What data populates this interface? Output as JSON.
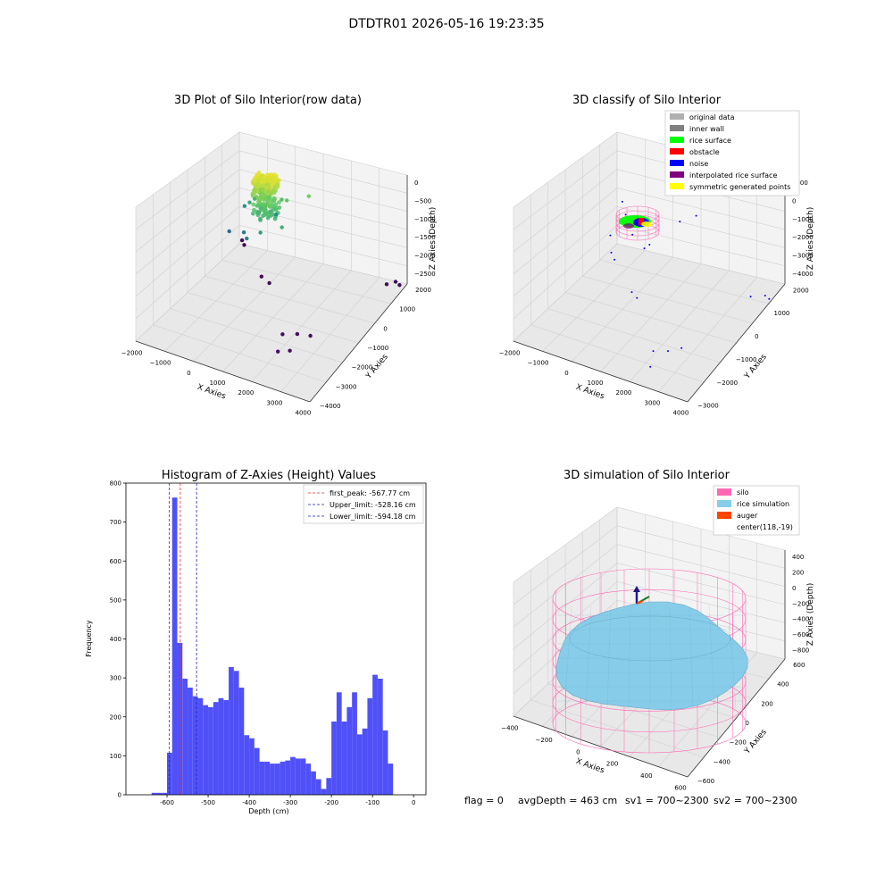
{
  "suptitle": "DTDTR01 2026-05-16 19:23:35",
  "status_line": {
    "flag": "flag = 0",
    "avg_depth": "avgDepth = 463 cm",
    "sv1": "sv1 = 700~2300",
    "sv2": "sv2 = 700~2300"
  },
  "colors": {
    "hist_bar": "#5050f8",
    "first_peak": "#e0302a",
    "limits": "#2020c0",
    "silo": "#ff69b4",
    "rice": "#87cdea",
    "auger": "#ff4500",
    "noise": "#0000ff",
    "rice_surface": "#00ff00",
    "obstacle": "#ff0000",
    "inner_wall": "#808080",
    "original": "#b0b0b0",
    "interpolated": "#800080",
    "symmetric": "#ffff00"
  },
  "chart_data": [
    {
      "type": "scatter",
      "projection": "3d",
      "title": "3D Plot of Silo Interior(row data)",
      "xlabel": "X Axies",
      "ylabel": "Y Axies",
      "zlabel": "Z Axies (Depth)",
      "xticks": [
        "−2000",
        "−1000",
        "0",
        "1000",
        "2000",
        "3000",
        "4000"
      ],
      "yticks": [
        "−4000",
        "−3000",
        "−2000",
        "−1000",
        "0",
        "1000",
        "2000"
      ],
      "zticks": [
        "0",
        "−500",
        "−1000",
        "−1500",
        "−2000",
        "−2500"
      ],
      "xlim": [
        -2000,
        4000
      ],
      "ylim": [
        -4000,
        2000
      ],
      "zlim": [
        -2700,
        0
      ],
      "colormap": "viridis",
      "cluster": {
        "x": [
          -200,
          500
        ],
        "y": [
          -300,
          300
        ],
        "z": [
          -1000,
          -100
        ]
      },
      "points": [
        [
          -1200,
          1000,
          -1300
        ],
        [
          -900,
          800,
          -1100
        ],
        [
          -600,
          600,
          -900
        ],
        [
          300,
          700,
          -800
        ],
        [
          600,
          500,
          -700
        ],
        [
          -400,
          -200,
          -1500
        ],
        [
          200,
          -400,
          -1200
        ],
        [
          -800,
          300,
          -1600
        ],
        [
          -200,
          1200,
          -1400
        ],
        [
          900,
          -300,
          -1000
        ],
        [
          1200,
          800,
          -600
        ],
        [
          -1500,
          600,
          -1800
        ],
        [
          -1900,
          2000,
          -2600
        ],
        [
          -1700,
          1800,
          -2600
        ],
        [
          -300,
          500,
          -2600
        ],
        [
          100,
          300,
          -2600
        ],
        [
          1800,
          -1800,
          -2600
        ],
        [
          2200,
          -1600,
          -2600
        ],
        [
          2600,
          -1500,
          -2600
        ],
        [
          2100,
          -2600,
          -2600
        ],
        [
          2400,
          -2400,
          -2600
        ],
        [
          3500,
          1600,
          -2600
        ],
        [
          3700,
          1800,
          -2600
        ],
        [
          3900,
          1700,
          -2600
        ]
      ]
    },
    {
      "type": "scatter",
      "projection": "3d",
      "title": "3D classify of Silo Interior",
      "xlabel": "X Axies",
      "ylabel": "Y Axies",
      "zlabel": "Z Axies (Depth)",
      "xticks": [
        "−2000",
        "−1000",
        "0",
        "1000",
        "2000",
        "3000",
        "4000"
      ],
      "yticks": [
        "−3000",
        "−2000",
        "−1000",
        "0",
        "1000",
        "2000"
      ],
      "zticks": [
        "1000",
        "0",
        "−1000",
        "−2000",
        "−3000",
        "−4000"
      ],
      "xlim": [
        -2000,
        4000
      ],
      "ylim": [
        -3500,
        2500
      ],
      "zlim": [
        -4200,
        1200
      ],
      "legend_position": "upper right",
      "legend": [
        {
          "label": "original data",
          "color": "#b0b0b0"
        },
        {
          "label": "inner wall",
          "color": "#808080"
        },
        {
          "label": "rice surface",
          "color": "#00ff00"
        },
        {
          "label": "obstacle",
          "color": "#ff0000"
        },
        {
          "label": "noise",
          "color": "#0000ff"
        },
        {
          "label": "interpolated rice surface",
          "color": "#800080"
        },
        {
          "label": "symmetric generated points",
          "color": "#ffff00"
        }
      ],
      "noise_points": [
        [
          -1200,
          1500,
          -1200
        ],
        [
          -900,
          1200,
          -1500
        ],
        [
          -300,
          600,
          -1800
        ],
        [
          300,
          300,
          -2000
        ],
        [
          600,
          100,
          -1600
        ],
        [
          1200,
          900,
          -900
        ],
        [
          1600,
          1200,
          -700
        ],
        [
          -600,
          -200,
          -1400
        ],
        [
          -1900,
          2000,
          -4200
        ],
        [
          -1600,
          1700,
          -4200
        ],
        [
          -200,
          400,
          -4200
        ],
        [
          100,
          200,
          -4200
        ],
        [
          1900,
          -1900,
          -4200
        ],
        [
          2300,
          -1700,
          -4200
        ],
        [
          2600,
          -1400,
          -4200
        ],
        [
          3300,
          1600,
          -4200
        ],
        [
          3700,
          1800,
          -4200
        ],
        [
          3900,
          1700,
          -4200
        ],
        [
          2200,
          -2600,
          -4200
        ]
      ]
    },
    {
      "type": "bar",
      "title": "Histogram of Z-Axies (Height) Values",
      "xlabel": "Depth (cm)",
      "ylabel": "Frequency",
      "xlim": [
        -700,
        30
      ],
      "ylim": [
        0,
        800
      ],
      "xticks": [
        -600,
        -500,
        -400,
        -300,
        -200,
        -100,
        0
      ],
      "yticks": [
        0,
        100,
        200,
        300,
        400,
        500,
        600,
        700,
        800
      ],
      "bin_width": 12.5,
      "bins_start": -637.5,
      "values": [
        5,
        5,
        5,
        108,
        763,
        390,
        298,
        275,
        253,
        248,
        230,
        225,
        238,
        248,
        243,
        328,
        318,
        275,
        153,
        145,
        120,
        85,
        85,
        80,
        80,
        85,
        88,
        97,
        93,
        93,
        80,
        60,
        40,
        15,
        43,
        188,
        263,
        188,
        225,
        263,
        155,
        170,
        248,
        308,
        298,
        165,
        80
      ],
      "legend_position": "upper right",
      "lines": [
        {
          "label": "first_peak: -567.77 cm",
          "x": -567.77,
          "style": "dashed",
          "color": "#e0302a"
        },
        {
          "label": "Upper_limit: -528.16 cm",
          "x": -528.16,
          "style": "dashed",
          "color": "#2020c0"
        },
        {
          "label": "Lower_limit: -594.18 cm",
          "x": -594.18,
          "style": "dashed",
          "color": "#2020c0"
        }
      ]
    },
    {
      "type": "surface",
      "projection": "3d",
      "title": "3D simulation of Silo Interior",
      "xlabel": "X Axies",
      "ylabel": "Y Axies",
      "zlabel": "Z Axies (Depth)",
      "xticks": [
        "−400",
        "−200",
        "0",
        "200",
        "400",
        "600"
      ],
      "yticks": [
        "−600",
        "−400",
        "−200",
        "0",
        "200",
        "400",
        "600"
      ],
      "zticks": [
        "400",
        "200",
        "0",
        "−200",
        "−400",
        "−600",
        "−800"
      ],
      "xlim": [
        -500,
        700
      ],
      "ylim": [
        -700,
        650
      ],
      "zlim": [
        -900,
        450
      ],
      "silo_radius": 620,
      "center": [
        118,
        -19
      ],
      "legend_position": "upper right",
      "legend": [
        {
          "label": "silo",
          "color": "#ff69b4"
        },
        {
          "label": "rice simulation",
          "color": "#87cdea"
        },
        {
          "label": "auger",
          "color": "#ff4500"
        },
        {
          "label": "center(118,-19)",
          "color": ""
        }
      ]
    }
  ]
}
